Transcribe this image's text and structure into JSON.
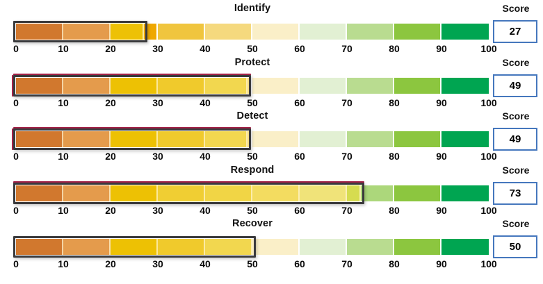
{
  "ui": {
    "score_label": "Score",
    "tick_values": [
      0,
      10,
      20,
      30,
      40,
      50,
      60,
      70,
      80,
      90,
      100
    ]
  },
  "colors": {
    "background": "#ffffff",
    "text": "#111111",
    "range_box_border": "#3a3a3c",
    "range_box_accent": "#a32147",
    "score_box_border": "#4577bd",
    "score_box_fill": "#ffffff"
  },
  "chart_data": {
    "type": "bar",
    "subtype": "bullet-gauge",
    "title": "",
    "categories": [
      "Identify",
      "Protect",
      "Detect",
      "Respond",
      "Recover"
    ],
    "values": [
      27,
      49,
      49,
      73,
      50
    ],
    "value_label": "Score",
    "xlim": [
      0,
      100
    ],
    "xticks": [
      0,
      10,
      20,
      30,
      40,
      50,
      60,
      70,
      80,
      90,
      100
    ],
    "legend": "none",
    "grid": "off"
  },
  "rows": [
    {
      "title": "Identify",
      "score": 27,
      "accent_edges": [],
      "segments": [
        {
          "from": 0,
          "to": 10,
          "color": "#d1782e",
          "covered": true
        },
        {
          "from": 10,
          "to": 20,
          "color": "#e49b4c",
          "covered": true
        },
        {
          "from": 20,
          "to": 27,
          "color": "#edc106",
          "covered": true
        },
        {
          "from": 27,
          "to": 30,
          "color": "#efa800",
          "covered": false
        },
        {
          "from": 30,
          "to": 40,
          "color": "#f0c53e",
          "covered": false
        },
        {
          "from": 40,
          "to": 50,
          "color": "#f5d97e",
          "covered": false
        },
        {
          "from": 50,
          "to": 60,
          "color": "#faefc8",
          "covered": false
        },
        {
          "from": 60,
          "to": 70,
          "color": "#e2f0d3",
          "covered": false
        },
        {
          "from": 70,
          "to": 80,
          "color": "#b9dc90",
          "covered": false
        },
        {
          "from": 80,
          "to": 90,
          "color": "#8cc63f",
          "covered": false
        },
        {
          "from": 90,
          "to": 100,
          "color": "#00a551",
          "covered": false
        }
      ]
    },
    {
      "title": "Protect",
      "score": 49,
      "accent_edges": [
        "left",
        "top"
      ],
      "segments": [
        {
          "from": 0,
          "to": 10,
          "color": "#d1782e",
          "covered": true
        },
        {
          "from": 10,
          "to": 20,
          "color": "#e49b4c",
          "covered": true
        },
        {
          "from": 20,
          "to": 30,
          "color": "#edc104",
          "covered": true
        },
        {
          "from": 30,
          "to": 40,
          "color": "#f0ca2c",
          "covered": true
        },
        {
          "from": 40,
          "to": 49,
          "color": "#f2d74f",
          "covered": true
        },
        {
          "from": 49,
          "to": 50,
          "color": "#f5dc80",
          "covered": false
        },
        {
          "from": 50,
          "to": 60,
          "color": "#faefc8",
          "covered": false
        },
        {
          "from": 60,
          "to": 70,
          "color": "#e2f0d3",
          "covered": false
        },
        {
          "from": 70,
          "to": 80,
          "color": "#b9dc90",
          "covered": false
        },
        {
          "from": 80,
          "to": 90,
          "color": "#8cc63f",
          "covered": false
        },
        {
          "from": 90,
          "to": 100,
          "color": "#00a551",
          "covered": false
        }
      ]
    },
    {
      "title": "Detect",
      "score": 49,
      "accent_edges": [
        "left",
        "top"
      ],
      "segments": [
        {
          "from": 0,
          "to": 10,
          "color": "#d1782e",
          "covered": true
        },
        {
          "from": 10,
          "to": 20,
          "color": "#e49b4c",
          "covered": true
        },
        {
          "from": 20,
          "to": 30,
          "color": "#edc104",
          "covered": true
        },
        {
          "from": 30,
          "to": 40,
          "color": "#f0ca2c",
          "covered": true
        },
        {
          "from": 40,
          "to": 49,
          "color": "#f2d74f",
          "covered": true
        },
        {
          "from": 49,
          "to": 50,
          "color": "#f5dc80",
          "covered": false
        },
        {
          "from": 50,
          "to": 60,
          "color": "#faefc8",
          "covered": false
        },
        {
          "from": 60,
          "to": 70,
          "color": "#e2f0d3",
          "covered": false
        },
        {
          "from": 70,
          "to": 80,
          "color": "#b9dc90",
          "covered": false
        },
        {
          "from": 80,
          "to": 90,
          "color": "#8cc63f",
          "covered": false
        },
        {
          "from": 90,
          "to": 100,
          "color": "#00a551",
          "covered": false
        }
      ]
    },
    {
      "title": "Respond",
      "score": 73,
      "accent_edges": [
        "top"
      ],
      "segments": [
        {
          "from": 0,
          "to": 10,
          "color": "#d1782e",
          "covered": true
        },
        {
          "from": 10,
          "to": 20,
          "color": "#e49b4c",
          "covered": true
        },
        {
          "from": 20,
          "to": 30,
          "color": "#edc104",
          "covered": true
        },
        {
          "from": 30,
          "to": 40,
          "color": "#f0ce33",
          "covered": true
        },
        {
          "from": 40,
          "to": 50,
          "color": "#f1d545",
          "covered": true
        },
        {
          "from": 50,
          "to": 60,
          "color": "#f3dc60",
          "covered": true
        },
        {
          "from": 60,
          "to": 70,
          "color": "#f0e379",
          "covered": true
        },
        {
          "from": 70,
          "to": 73,
          "color": "#d6dc50",
          "covered": true
        },
        {
          "from": 73,
          "to": 80,
          "color": "#acd77b",
          "covered": false
        },
        {
          "from": 80,
          "to": 90,
          "color": "#8cc63f",
          "covered": false
        },
        {
          "from": 90,
          "to": 100,
          "color": "#00a551",
          "covered": false
        }
      ]
    },
    {
      "title": "Recover",
      "score": 50,
      "accent_edges": [],
      "segments": [
        {
          "from": 0,
          "to": 10,
          "color": "#d1782e",
          "covered": true
        },
        {
          "from": 10,
          "to": 20,
          "color": "#e49b4c",
          "covered": true
        },
        {
          "from": 20,
          "to": 30,
          "color": "#edc104",
          "covered": true
        },
        {
          "from": 30,
          "to": 40,
          "color": "#f0ca2c",
          "covered": true
        },
        {
          "from": 40,
          "to": 50,
          "color": "#f2d74f",
          "covered": true
        },
        {
          "from": 50,
          "to": 60,
          "color": "#faefc8",
          "covered": false
        },
        {
          "from": 60,
          "to": 70,
          "color": "#e2f0d3",
          "covered": false
        },
        {
          "from": 70,
          "to": 80,
          "color": "#b9dc90",
          "covered": false
        },
        {
          "from": 80,
          "to": 90,
          "color": "#8cc63f",
          "covered": false
        },
        {
          "from": 90,
          "to": 100,
          "color": "#00a551",
          "covered": false
        }
      ]
    }
  ]
}
